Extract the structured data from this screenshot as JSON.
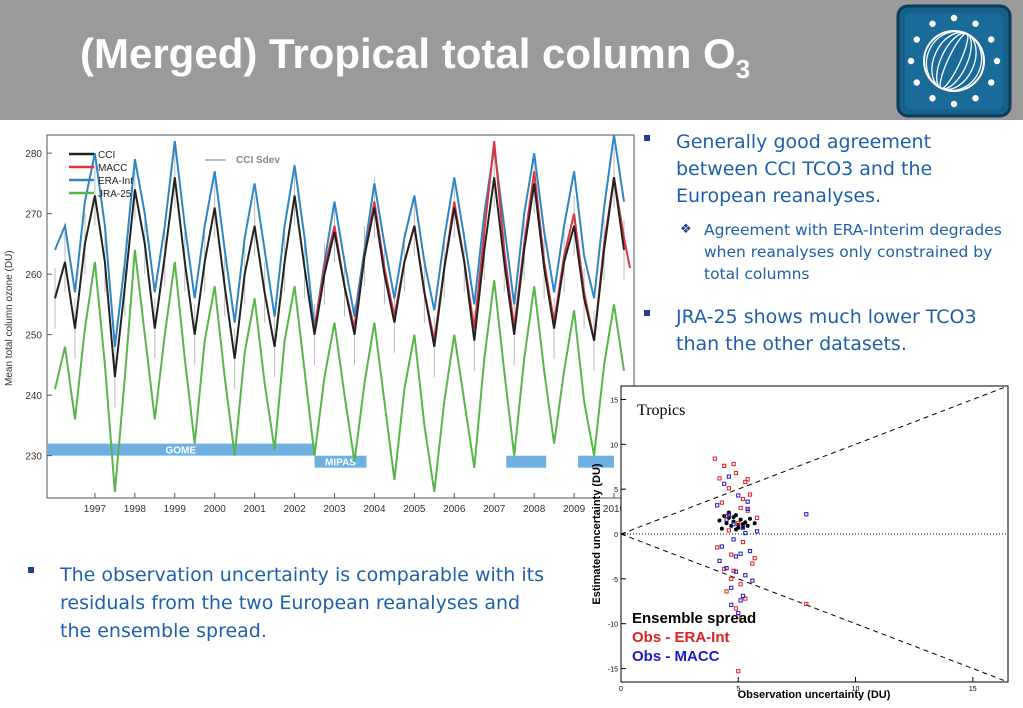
{
  "slide": {
    "title_main": "(Merged) Tropical total column O",
    "title_sub": "3",
    "bullet1": "Generally good agreement between CCI TCO3 and the European reanalyses.",
    "sub_bullet1": "Agreement with ERA-Interim degrades when reanalyses only constrained by total columns",
    "bullet2": "JRA-25 shows much lower TCO3 than the other datasets.",
    "bullet3": "The observation uncertainty is comparable with its residuals from the two European reanalyses and the ensemble spread.",
    "icons": {
      "logo": "esa-cci-globe-logo",
      "bullet": "square-bullet",
      "sub_bullet": "diamond-bullet"
    }
  },
  "chart_data": [
    {
      "type": "line",
      "ylabel": "Mean total column ozone (DU)",
      "ylim": [
        223,
        283
      ],
      "xlim": [
        1996.3,
        2011.0
      ],
      "x_ticks": [
        "1997",
        "1998",
        "1999",
        "2000",
        "2001",
        "2002",
        "2003",
        "2004",
        "2005",
        "2006",
        "2007",
        "2008",
        "2009",
        "2010"
      ],
      "y_ticks": [
        "230",
        "240",
        "250",
        "260",
        "270",
        "280"
      ],
      "legend": [
        "CCI",
        "MACC",
        "ERA-Int",
        "JRA-25"
      ],
      "legend_extra": "CCI Sdev",
      "legend_position": "top-left",
      "colors": {
        "CCI": "#222222",
        "MACC": "#d9363e",
        "ERA-Int": "#2f86c4",
        "JRA-25": "#58b54a",
        "CCI Sdev": "#bbbbbb",
        "bars": "#6fb0e2"
      },
      "instrument_bars": [
        {
          "label": "GOME",
          "start": 1996.3,
          "end": 2003.0,
          "y": 231
        },
        {
          "label": "MIPAS",
          "start": 2003.0,
          "end": 2004.3,
          "y": 229
        },
        {
          "label": "",
          "start": 2007.8,
          "end": 2008.8,
          "y": 229
        },
        {
          "label": "",
          "start": 2009.6,
          "end": 2010.5,
          "y": 229
        }
      ],
      "series": [
        {
          "name": "CCI",
          "x": [
            1996.5,
            1996.75,
            1997.0,
            1997.25,
            1997.5,
            1997.75,
            1998.0,
            1998.25,
            1998.5,
            1998.75,
            1999.0,
            1999.25,
            1999.5,
            1999.75,
            2000.0,
            2000.25,
            2000.5,
            2000.75,
            2001.0,
            2001.25,
            2001.5,
            2001.75,
            2002.0,
            2002.25,
            2002.5,
            2002.75,
            2003.0,
            2003.25,
            2003.5,
            2003.75,
            2004.0,
            2004.25,
            2004.5,
            2004.75,
            2005.0,
            2005.25,
            2005.5,
            2005.75,
            2006.0,
            2006.25,
            2006.5,
            2006.75,
            2007.0,
            2007.25,
            2007.5,
            2007.75,
            2008.0,
            2008.25,
            2008.5,
            2008.75,
            2009.0,
            2009.25,
            2009.5,
            2009.75,
            2010.0,
            2010.25,
            2010.5,
            2010.75
          ],
          "y": [
            256,
            262,
            251,
            265,
            273,
            262,
            243,
            258,
            274,
            265,
            251,
            263,
            276,
            262,
            250,
            262,
            271,
            258,
            246,
            260,
            268,
            257,
            248,
            262,
            273,
            261,
            250,
            260,
            267,
            258,
            250,
            263,
            271,
            260,
            252,
            262,
            268,
            257,
            248,
            261,
            271,
            262,
            249,
            264,
            276,
            262,
            250,
            264,
            275,
            261,
            251,
            262,
            268,
            256,
            249,
            264,
            276,
            264
          ]
        },
        {
          "name": "MACC",
          "x": [
            2003.0,
            2003.25,
            2003.5,
            2003.75,
            2004.0,
            2004.25,
            2004.5,
            2004.75,
            2005.0,
            2005.25,
            2005.5,
            2005.75,
            2006.0,
            2006.25,
            2006.5,
            2006.75,
            2007.0,
            2007.25,
            2007.5,
            2007.75,
            2008.0,
            2008.25,
            2008.5,
            2008.75,
            2009.0,
            2009.25,
            2009.5,
            2009.75,
            2010.0,
            2010.25,
            2010.5,
            2010.75,
            2010.9
          ],
          "y": [
            251,
            261,
            268,
            258,
            251,
            263,
            272,
            261,
            253,
            262,
            268,
            257,
            249,
            261,
            272,
            262,
            251,
            267,
            282,
            264,
            251,
            265,
            277,
            262,
            252,
            263,
            270,
            257,
            249,
            265,
            276,
            266,
            261
          ]
        },
        {
          "name": "ERA-Int",
          "x": [
            1996.5,
            1996.75,
            1997.0,
            1997.25,
            1997.5,
            1997.75,
            1998.0,
            1998.25,
            1998.5,
            1998.75,
            1999.0,
            1999.25,
            1999.5,
            1999.75,
            2000.0,
            2000.25,
            2000.5,
            2000.75,
            2001.0,
            2001.25,
            2001.5,
            2001.75,
            2002.0,
            2002.25,
            2002.5,
            2002.75,
            2003.0,
            2003.25,
            2003.5,
            2003.75,
            2004.0,
            2004.25,
            2004.5,
            2004.75,
            2005.0,
            2005.25,
            2005.5,
            2005.75,
            2006.0,
            2006.25,
            2006.5,
            2006.75,
            2007.0,
            2007.25,
            2007.5,
            2007.75,
            2008.0,
            2008.25,
            2008.5,
            2008.75,
            2009.0,
            2009.25,
            2009.5,
            2009.75,
            2010.0,
            2010.25,
            2010.5,
            2010.75
          ],
          "y": [
            264,
            268,
            257,
            272,
            280,
            268,
            248,
            262,
            279,
            270,
            257,
            268,
            282,
            268,
            256,
            268,
            277,
            264,
            252,
            266,
            275,
            264,
            253,
            268,
            278,
            266,
            251,
            262,
            272,
            262,
            253,
            264,
            275,
            265,
            256,
            266,
            273,
            262,
            254,
            266,
            276,
            266,
            255,
            270,
            281,
            268,
            255,
            270,
            280,
            267,
            257,
            268,
            277,
            263,
            256,
            271,
            283,
            272
          ]
        },
        {
          "name": "JRA-25",
          "x": [
            1996.5,
            1996.75,
            1997.0,
            1997.25,
            1997.5,
            1997.75,
            1998.0,
            1998.25,
            1998.5,
            1998.75,
            1999.0,
            1999.25,
            1999.5,
            1999.75,
            2000.0,
            2000.25,
            2000.5,
            2000.75,
            2001.0,
            2001.25,
            2001.5,
            2001.75,
            2002.0,
            2002.25,
            2002.5,
            2002.75,
            2003.0,
            2003.25,
            2003.5,
            2003.75,
            2004.0,
            2004.25,
            2004.5,
            2004.75,
            2005.0,
            2005.25,
            2005.5,
            2005.75,
            2006.0,
            2006.25,
            2006.5,
            2006.75,
            2007.0,
            2007.25,
            2007.5,
            2007.75,
            2008.0,
            2008.25,
            2008.5,
            2008.75,
            2009.0,
            2009.25,
            2009.5,
            2009.75,
            2010.0,
            2010.25,
            2010.5,
            2010.75
          ],
          "y": [
            241,
            248,
            236,
            251,
            262,
            245,
            224,
            243,
            264,
            250,
            236,
            250,
            262,
            246,
            232,
            249,
            258,
            243,
            230,
            247,
            256,
            242,
            231,
            249,
            258,
            244,
            230,
            243,
            252,
            240,
            229,
            242,
            252,
            239,
            226,
            241,
            250,
            235,
            224,
            239,
            250,
            239,
            228,
            246,
            259,
            244,
            230,
            246,
            258,
            244,
            232,
            244,
            254,
            239,
            230,
            245,
            255,
            244
          ]
        }
      ]
    },
    {
      "type": "scatter",
      "title": "Tropics",
      "xlabel": "Observation uncertainty (DU)",
      "ylabel": "Estimated uncertainty (DU)",
      "xlim": [
        0,
        16.5
      ],
      "ylim": [
        -16.5,
        16.5
      ],
      "x_ticks": [
        "0",
        "5",
        "10",
        "15"
      ],
      "y_ticks": [
        "-15",
        "-10",
        "-5",
        "0",
        "5",
        "10",
        "15"
      ],
      "legend": [
        "Ensemble spread",
        "Obs - ERA-Int",
        "Obs - MACC"
      ],
      "legend_position": "bottom-left",
      "colors": {
        "Ensemble spread": "#000000",
        "Obs - ERA-Int": "#e02020",
        "Obs - MACC": "#1a1acc"
      },
      "reference_lines": [
        {
          "slope": 1.0,
          "style": "dashed"
        },
        {
          "slope": -1.0,
          "style": "dashed"
        },
        {
          "slope": 0,
          "style": "dotted"
        }
      ],
      "series": [
        {
          "name": "Ensemble spread",
          "x": [
            4.2,
            4.4,
            4.5,
            4.6,
            4.7,
            4.8,
            4.9,
            5.0,
            5.1,
            5.2,
            5.3,
            5.5,
            5.7,
            4.3,
            4.6,
            4.9,
            5.2,
            5.4,
            4.8,
            5.0
          ],
          "y": [
            1.5,
            2.0,
            1.2,
            1.8,
            0.9,
            1.4,
            2.1,
            1.0,
            1.6,
            0.8,
            1.3,
            1.7,
            1.2,
            0.6,
            2.4,
            0.5,
            1.1,
            0.9,
            1.9,
            0.7
          ]
        },
        {
          "name": "Obs - ERA-Int",
          "x": [
            4.0,
            4.2,
            4.3,
            4.4,
            4.5,
            4.6,
            4.7,
            4.8,
            4.9,
            5.0,
            5.1,
            5.2,
            5.3,
            5.4,
            5.5,
            5.6,
            5.8,
            4.1,
            4.5,
            4.9,
            5.3,
            5.7,
            4.4,
            4.8,
            5.2,
            4.6,
            5.0,
            5.4,
            4.7,
            5.1,
            7.9,
            5.0
          ],
          "y": [
            8.4,
            6.2,
            3.5,
            7.6,
            2.0,
            5.1,
            -2.3,
            -4.1,
            6.8,
            1.2,
            -5.6,
            3.9,
            -7.2,
            2.6,
            4.4,
            -3.3,
            1.8,
            -1.5,
            -6.4,
            -8.3,
            5.8,
            -2.7,
            -3.9,
            7.8,
            -0.9,
            0.4,
            -9.2,
            6.1,
            -5.0,
            2.9,
            -7.8,
            -15.3
          ]
        },
        {
          "name": "Obs - MACC",
          "x": [
            4.1,
            4.3,
            4.4,
            4.5,
            4.6,
            4.7,
            4.8,
            4.9,
            5.0,
            5.1,
            5.2,
            5.3,
            5.4,
            5.5,
            5.6,
            5.8,
            4.2,
            4.6,
            5.0,
            5.4,
            4.8,
            5.2,
            4.5,
            4.9,
            5.3,
            7.9,
            5.1,
            4.7
          ],
          "y": [
            3.2,
            -1.4,
            5.6,
            -3.8,
            2.2,
            -6.0,
            1.1,
            -2.5,
            4.3,
            -7.4,
            0.7,
            -4.6,
            2.8,
            -1.9,
            -5.2,
            0.3,
            -3.0,
            6.4,
            -8.8,
            3.6,
            -0.6,
            -6.9,
            1.6,
            -4.2,
            0.1,
            2.2,
            -2.2,
            -7.9
          ]
        }
      ]
    }
  ]
}
